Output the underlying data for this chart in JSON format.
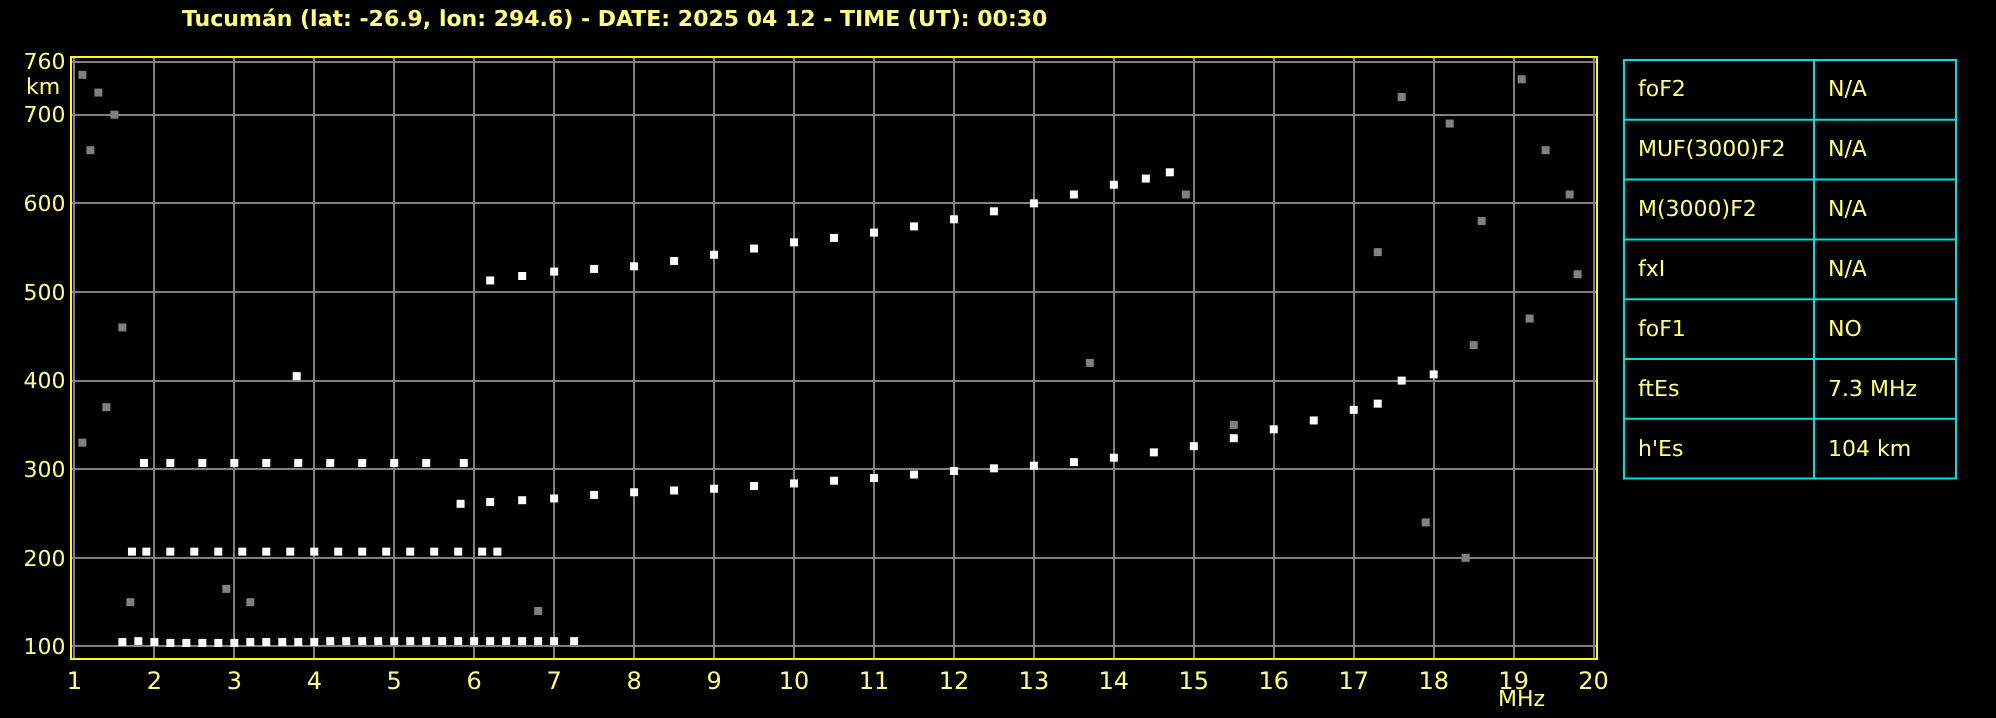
{
  "chart_data": [
    {
      "type": "scatter",
      "title": "Tucumán (lat: -26.9, lon: 294.6) - DATE: 2025 04 12 - TIME (UT): 00:30",
      "xlabel": "MHz",
      "ylabel": "km",
      "marker": "square",
      "grid": true,
      "xlim": [
        0.97,
        20.03
      ],
      "xticks": [
        1,
        2,
        3,
        4,
        5,
        6,
        7,
        8,
        9,
        10,
        11,
        12,
        13,
        14,
        15,
        16,
        17,
        18,
        19,
        20
      ],
      "ylim": [
        87,
        764
      ],
      "yticks": [
        100,
        200,
        300,
        400,
        500,
        600,
        700,
        760
      ],
      "series": [
        {
          "color": "#ffffff",
          "x": [
            1.6,
            1.8,
            2.0,
            2.2,
            2.4,
            2.6,
            2.8,
            3.0,
            3.2,
            3.4,
            3.6,
            3.8,
            4.0,
            4.2,
            4.4,
            4.6,
            4.8,
            5.0,
            5.2,
            5.4,
            5.6,
            5.8,
            6.0,
            6.2,
            6.4,
            6.6,
            6.8,
            7.0,
            7.25
          ],
          "values": [
            105,
            106,
            105,
            104,
            104,
            104,
            104,
            104,
            105,
            105,
            105,
            105,
            105,
            106,
            106,
            106,
            106,
            106,
            106,
            106,
            106,
            106,
            106,
            106,
            106,
            106,
            106,
            106,
            106
          ]
        },
        {
          "color": "#ffffff",
          "x": [
            1.72,
            1.9,
            2.2,
            2.5,
            2.8,
            3.1,
            3.4,
            3.7,
            4.0,
            4.3,
            4.6,
            4.9,
            5.2,
            5.5,
            5.8,
            6.1,
            6.29
          ],
          "values": [
            207,
            207,
            207,
            207,
            207,
            207,
            207,
            207,
            207,
            207,
            207,
            207,
            207,
            207,
            207,
            207,
            207
          ]
        },
        {
          "color": "#ffffff",
          "x": [
            1.87,
            2.2,
            2.6,
            3.0,
            3.4,
            3.8,
            4.2,
            4.6,
            5.0,
            5.4,
            5.87
          ],
          "values": [
            307,
            307,
            307,
            307,
            307,
            307,
            307,
            307,
            307,
            307,
            307
          ]
        },
        {
          "color": "#ffffff",
          "x": [
            3.78
          ],
          "values": [
            405
          ]
        },
        {
          "color": "#ffffff",
          "x": [
            5.83,
            6.2,
            6.6,
            7.0,
            7.5,
            8.0,
            8.5,
            9.0,
            9.5,
            10.0,
            10.5,
            11.0,
            11.5,
            12.0,
            12.5,
            13.0,
            13.5,
            14.0,
            14.5,
            15.0,
            15.5,
            16.0,
            16.5,
            17.0,
            17.3,
            17.6,
            18.0
          ],
          "values": [
            261,
            263,
            265,
            267,
            271,
            274,
            276,
            278,
            281,
            284,
            287,
            290,
            294,
            298,
            301,
            304,
            308,
            313,
            319,
            326,
            335,
            345,
            355,
            367,
            374,
            400,
            407
          ]
        },
        {
          "color": "#ffffff",
          "x": [
            6.2,
            6.6,
            7.0,
            7.5,
            8.0,
            8.5,
            9.0,
            9.5,
            10.0,
            10.5,
            11.0,
            11.5,
            12.0,
            12.5,
            13.0,
            13.5,
            14.0,
            14.4,
            14.7
          ],
          "values": [
            513,
            518,
            523,
            526,
            529,
            535,
            542,
            549,
            556,
            561,
            567,
            574,
            582,
            591,
            600,
            610,
            621,
            628,
            635
          ]
        },
        {
          "color": "#808080",
          "x": [
            1.1,
            1.3,
            1.5,
            1.2,
            1.6,
            1.4,
            1.1,
            1.7,
            2.9,
            3.2,
            6.8,
            14.9,
            17.6,
            18.2,
            18.6,
            19.1,
            19.4,
            19.7,
            17.3,
            18.5,
            19.2,
            19.8,
            13.7,
            15.5,
            17.9,
            18.4
          ],
          "values": [
            745,
            725,
            700,
            660,
            460,
            370,
            330,
            150,
            165,
            150,
            140,
            610,
            720,
            690,
            580,
            740,
            660,
            610,
            545,
            440,
            470,
            520,
            420,
            350,
            240,
            200
          ]
        }
      ]
    },
    {
      "type": "other",
      "annotations": [
        "foF2",
        "N/A",
        "MUF(3000)F2",
        "N/A",
        "M(3000)F2",
        "N/A",
        "fxI",
        "N/A",
        "foF1",
        "NO",
        "ftEs",
        "7.3 MHz",
        "h'Es",
        "104 km"
      ]
    }
  ]
}
